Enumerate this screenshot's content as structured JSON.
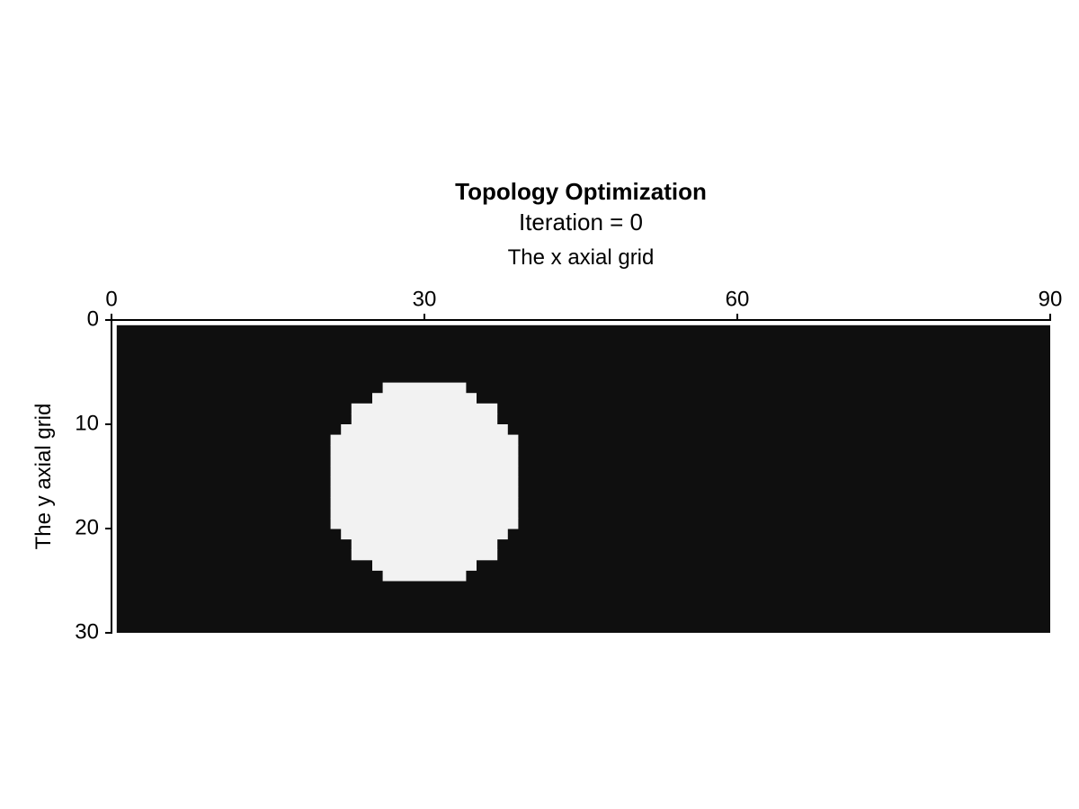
{
  "chart_data": {
    "type": "heatmap",
    "title": "Topology Optimization",
    "subtitle": "Iteration = 0",
    "xlabel": "The x axial grid",
    "ylabel": "The y axial grid",
    "xlim": [
      0,
      90
    ],
    "ylim": [
      0,
      30
    ],
    "x_axis_position": "top",
    "y_axis_reversed": true,
    "xticks": [
      "0",
      "30",
      "60",
      "90"
    ],
    "yticks": [
      "0",
      "10",
      "20",
      "30"
    ],
    "grid": false,
    "colorscale": "grayscale",
    "colors": {
      "solid": "#0f0f0f",
      "void": "#f2f2f2",
      "axis": "#000000"
    },
    "domain": {
      "x": [
        0.5,
        90
      ],
      "y": [
        0.5,
        30
      ]
    },
    "void_region": {
      "shape": "circle",
      "cells_per_row": [
        {
          "row": 6,
          "x": [
            26,
            34
          ]
        },
        {
          "row": 7,
          "x": [
            25,
            35
          ]
        },
        {
          "row": 8,
          "x": [
            23,
            37
          ]
        },
        {
          "row": 9,
          "x": [
            23,
            37
          ]
        },
        {
          "row": 10,
          "x": [
            22,
            38
          ]
        },
        {
          "row": 11,
          "x": [
            21,
            39
          ]
        },
        {
          "row": 12,
          "x": [
            21,
            39
          ]
        },
        {
          "row": 13,
          "x": [
            21,
            39
          ]
        },
        {
          "row": 14,
          "x": [
            21,
            39
          ]
        },
        {
          "row": 15,
          "x": [
            21,
            39
          ]
        },
        {
          "row": 16,
          "x": [
            21,
            39
          ]
        },
        {
          "row": 17,
          "x": [
            21,
            39
          ]
        },
        {
          "row": 18,
          "x": [
            21,
            39
          ]
        },
        {
          "row": 19,
          "x": [
            21,
            39
          ]
        },
        {
          "row": 20,
          "x": [
            22,
            38
          ]
        },
        {
          "row": 21,
          "x": [
            23,
            37
          ]
        },
        {
          "row": 22,
          "x": [
            23,
            37
          ]
        },
        {
          "row": 23,
          "x": [
            25,
            35
          ]
        },
        {
          "row": 24,
          "x": [
            26,
            34
          ]
        }
      ]
    }
  }
}
